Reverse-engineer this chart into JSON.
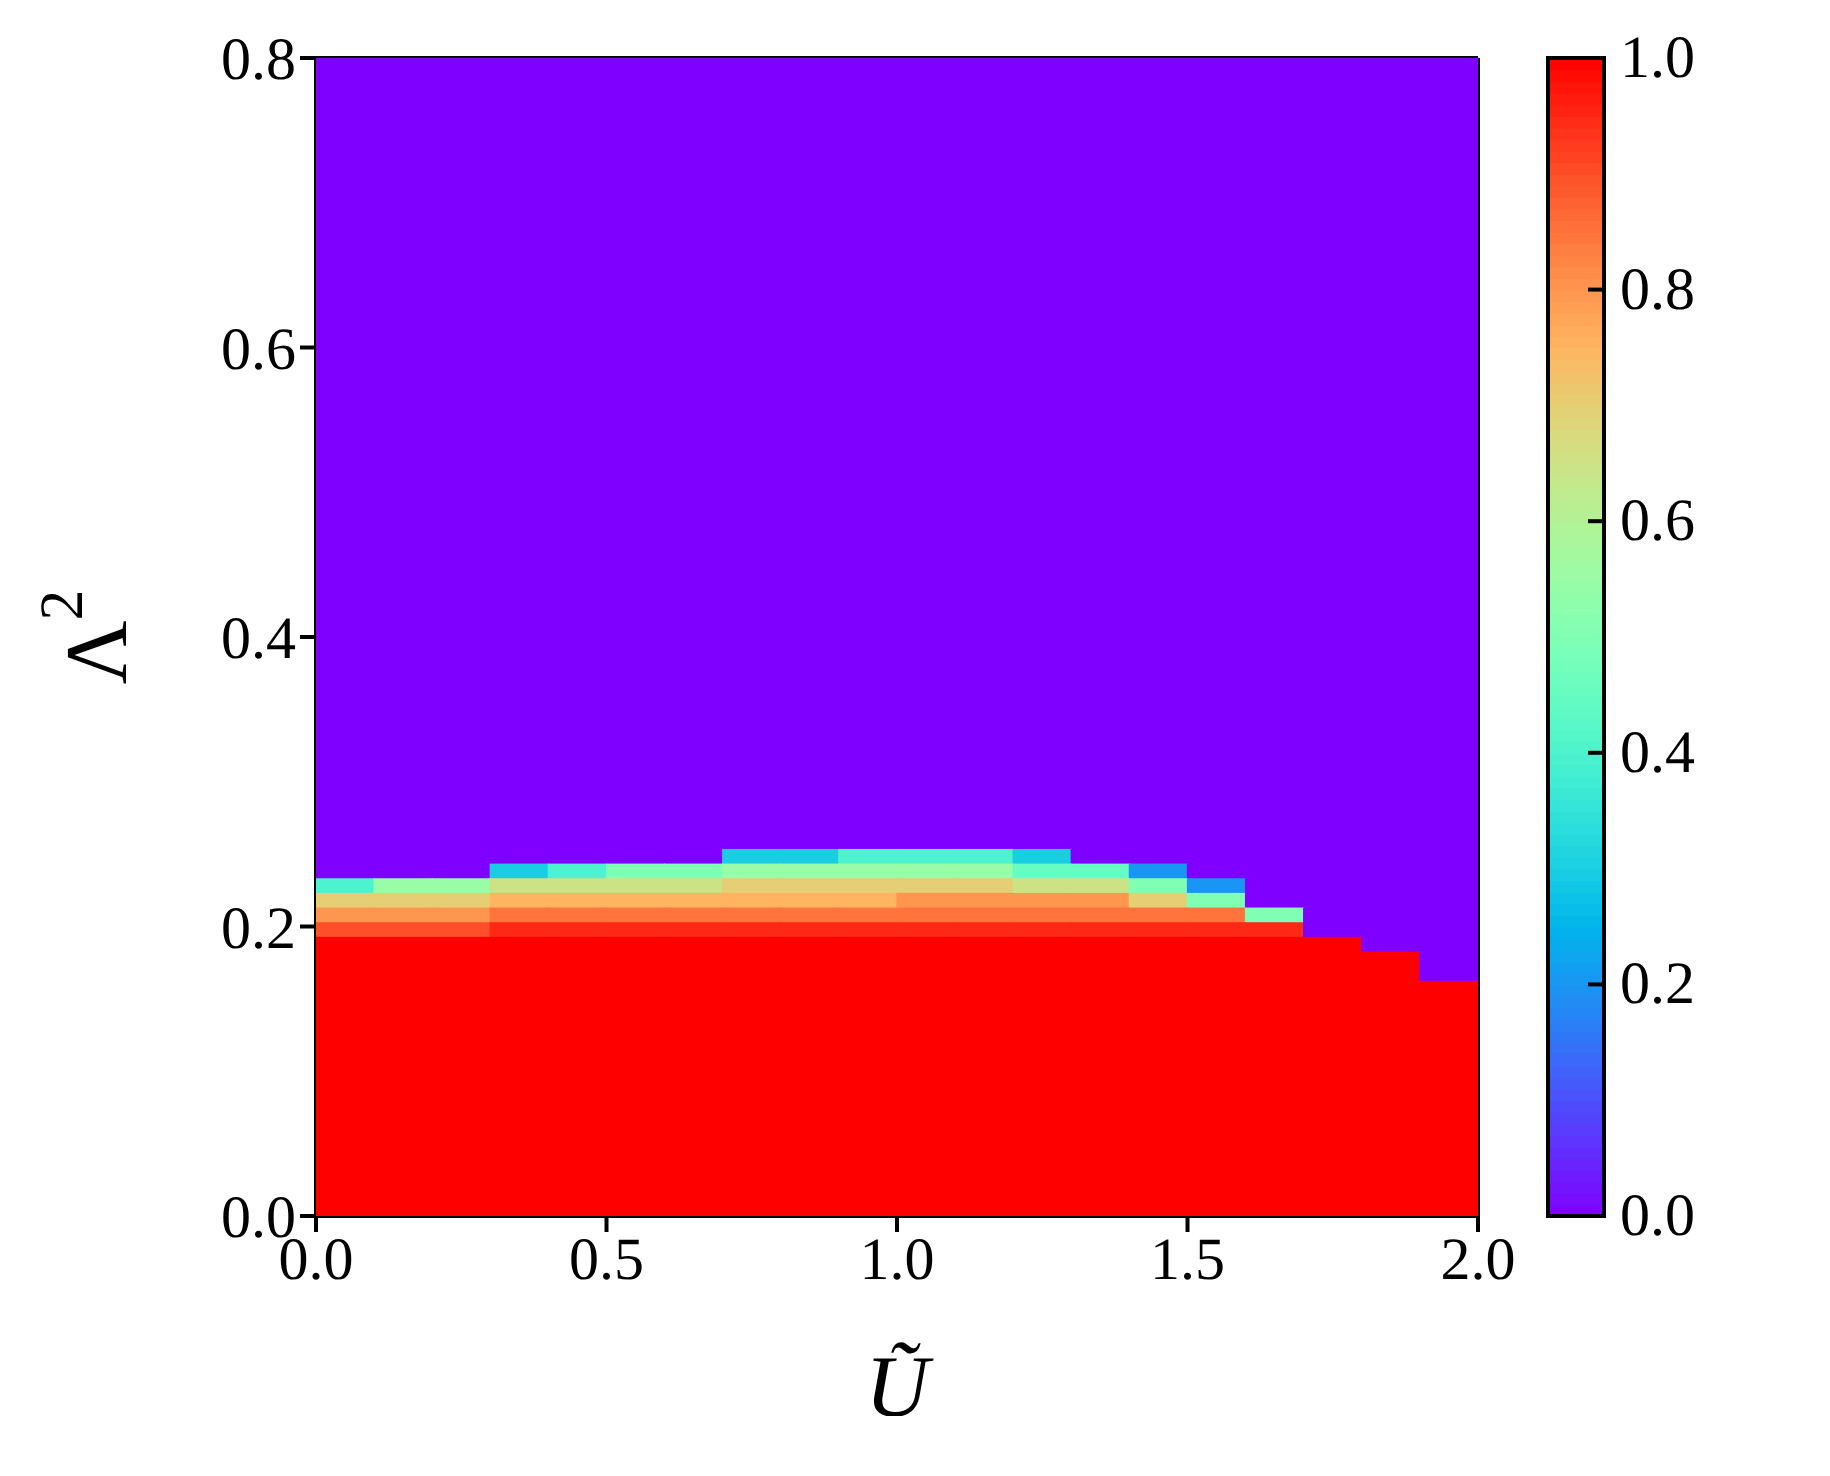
{
  "chart_data": {
    "type": "heatmap",
    "xlabel": "Ũ",
    "ylabel": "Λ$^{2}$",
    "xlim": [
      0,
      2
    ],
    "ylim": [
      0,
      0.8
    ],
    "xticks": [
      {
        "value": 0,
        "label": "0.0"
      },
      {
        "value": 0.5,
        "label": "0.5"
      },
      {
        "value": 1,
        "label": "1.0"
      },
      {
        "value": 1.5,
        "label": "1.5"
      },
      {
        "value": 2,
        "label": "2.0"
      }
    ],
    "yticks": [
      {
        "value": 0,
        "label": "0.0"
      },
      {
        "value": 0.2,
        "label": "0.2"
      },
      {
        "value": 0.4,
        "label": "0.4"
      },
      {
        "value": 0.6,
        "label": "0.6"
      },
      {
        "value": 0.8,
        "label": "0.8"
      }
    ],
    "clim": [
      0,
      1
    ],
    "cticks": [
      {
        "value": 0,
        "label": "0.0"
      },
      {
        "value": 0.2,
        "label": "0.2"
      },
      {
        "value": 0.4,
        "label": "0.4"
      },
      {
        "value": 0.6,
        "label": "0.6"
      },
      {
        "value": 0.8,
        "label": "0.8"
      },
      {
        "value": 1,
        "label": "1.0"
      }
    ],
    "cells": [
      [
        0,
        0,
        0,
        0,
        0,
        0,
        0,
        0,
        0,
        0,
        0,
        0,
        0,
        0,
        0,
        0,
        0,
        0,
        0,
        0
      ],
      [
        0,
        0,
        0,
        0,
        0,
        0,
        0,
        0,
        0,
        0,
        0,
        0,
        0,
        0,
        0,
        0,
        0,
        0,
        0,
        0
      ],
      [
        0,
        0,
        0,
        0,
        0,
        0,
        0,
        0,
        0,
        0,
        0,
        0,
        0,
        0,
        0,
        0,
        0,
        0,
        0,
        0
      ],
      [
        0,
        0,
        0,
        0,
        0,
        0,
        0,
        0,
        0,
        0,
        0,
        0,
        0,
        0,
        0,
        0,
        0,
        0,
        0,
        0
      ],
      [
        0,
        0,
        0,
        0,
        0,
        0,
        0,
        0,
        0,
        0,
        0,
        0,
        0,
        0,
        0,
        0,
        0,
        0,
        0,
        0
      ],
      [
        0,
        0,
        0,
        0,
        0,
        0,
        0,
        0,
        0,
        0,
        0,
        0,
        0,
        0,
        0,
        0,
        0,
        0,
        0,
        0
      ],
      [
        0,
        0,
        0,
        0,
        0,
        0,
        0,
        0,
        0,
        0,
        0,
        0,
        0,
        0,
        0,
        0,
        0,
        0,
        0,
        0
      ],
      [
        0,
        0,
        0,
        0,
        0,
        0,
        0,
        0,
        0,
        0,
        0,
        0,
        0,
        0,
        0,
        0,
        0,
        0,
        0,
        0
      ],
      [
        0,
        0,
        0,
        0,
        0,
        0,
        0,
        0,
        0,
        0,
        0,
        0,
        0,
        0,
        0,
        0,
        0,
        0,
        0,
        0
      ],
      [
        0,
        0,
        0,
        0,
        0,
        0,
        0,
        0,
        0,
        0,
        0,
        0,
        0,
        0,
        0,
        0,
        0,
        0,
        0,
        0
      ],
      [
        0,
        0,
        0,
        0,
        0,
        0,
        0,
        0,
        0,
        0,
        0,
        0,
        0,
        0,
        0,
        0,
        0,
        0,
        0,
        0
      ],
      [
        0,
        0,
        0,
        0,
        0,
        0,
        0,
        0,
        0,
        0,
        0,
        0,
        0,
        0,
        0,
        0,
        0,
        0,
        0,
        0
      ],
      [
        0,
        0,
        0,
        0,
        0,
        0,
        0,
        0,
        0,
        0,
        0,
        0,
        0,
        0,
        0,
        0,
        0,
        0,
        0,
        0
      ],
      [
        0,
        0,
        0,
        0,
        0,
        0,
        0,
        0,
        0,
        0,
        0,
        0,
        0,
        0,
        0,
        0,
        0,
        0,
        0,
        0
      ],
      [
        0,
        0,
        0,
        0,
        0,
        0,
        0,
        0,
        0,
        0,
        0,
        0,
        0,
        0,
        0,
        0,
        0,
        0,
        0,
        0
      ],
      [
        0,
        0,
        0,
        0,
        0,
        0,
        0,
        0,
        0,
        0,
        0,
        0,
        0,
        0,
        0,
        0,
        0,
        0,
        0,
        0
      ],
      [
        0,
        0,
        0,
        0,
        0,
        0,
        0,
        0,
        0,
        0,
        0,
        0,
        0,
        0,
        0,
        0,
        0,
        0,
        0,
        0
      ],
      [
        0,
        0,
        0,
        0,
        0,
        0,
        0,
        0,
        0,
        0,
        0,
        0,
        0,
        0,
        0,
        0,
        0,
        0,
        0,
        0
      ],
      [
        0,
        0,
        0,
        0,
        0,
        0,
        0,
        0,
        0,
        0,
        0,
        0,
        0,
        0,
        0,
        0,
        0,
        0,
        0,
        0
      ],
      [
        0,
        0,
        0,
        0,
        0,
        0,
        0,
        0,
        0,
        0,
        0,
        0,
        0,
        0,
        0,
        0,
        0,
        0,
        0,
        0
      ],
      [
        0,
        0,
        0,
        0,
        0,
        0,
        0,
        0,
        0,
        0,
        0,
        0,
        0,
        0,
        0,
        0,
        0,
        0,
        0,
        0
      ],
      [
        0,
        0,
        0,
        0,
        0,
        0,
        0,
        0,
        0,
        0,
        0,
        0,
        0,
        0,
        0,
        0,
        0,
        0,
        0,
        0
      ],
      [
        0,
        0,
        0,
        0,
        0,
        0,
        0,
        0,
        0,
        0,
        0,
        0,
        0,
        0,
        0,
        0,
        0,
        0,
        0,
        0
      ],
      [
        0,
        0,
        0,
        0,
        0,
        0,
        0,
        0,
        0,
        0,
        0,
        0,
        0,
        0,
        0,
        0,
        0,
        0,
        0,
        0
      ],
      [
        0,
        0,
        0,
        0,
        0,
        0,
        0,
        0,
        0,
        0,
        0,
        0,
        0,
        0,
        0,
        0,
        0,
        0,
        0,
        0
      ],
      [
        0,
        0,
        0,
        0,
        0,
        0,
        0,
        0,
        0,
        0,
        0,
        0,
        0,
        0,
        0,
        0,
        0,
        0,
        0,
        0
      ],
      [
        0,
        0,
        0,
        0,
        0,
        0,
        0,
        0,
        0,
        0,
        0,
        0,
        0,
        0,
        0,
        0,
        0,
        0,
        0,
        0
      ],
      [
        0,
        0,
        0,
        0,
        0,
        0,
        0,
        0,
        0,
        0,
        0,
        0,
        0,
        0,
        0,
        0,
        0,
        0,
        0,
        0
      ],
      [
        0,
        0,
        0,
        0,
        0,
        0,
        0,
        0,
        0,
        0,
        0,
        0,
        0,
        0,
        0,
        0,
        0,
        0,
        0,
        0
      ],
      [
        0,
        0,
        0,
        0,
        0,
        0,
        0,
        0,
        0,
        0,
        0,
        0,
        0,
        0,
        0,
        0,
        0,
        0,
        0,
        0
      ],
      [
        0,
        0,
        0,
        0,
        0,
        0,
        0,
        0,
        0,
        0,
        0,
        0,
        0,
        0,
        0,
        0,
        0,
        0,
        0,
        0
      ],
      [
        0,
        0,
        0,
        0,
        0,
        0,
        0,
        0,
        0,
        0,
        0,
        0,
        0,
        0,
        0,
        0,
        0,
        0,
        0,
        0
      ],
      [
        0,
        0,
        0,
        0,
        0,
        0,
        0,
        0,
        0,
        0,
        0,
        0,
        0,
        0,
        0,
        0,
        0,
        0,
        0,
        0
      ],
      [
        0,
        0,
        0,
        0,
        0,
        0,
        0,
        0,
        0,
        0,
        0,
        0,
        0,
        0,
        0,
        0,
        0,
        0,
        0,
        0
      ],
      [
        0,
        0,
        0,
        0,
        0,
        0,
        0,
        0,
        0,
        0,
        0,
        0,
        0,
        0,
        0,
        0,
        0,
        0,
        0,
        0
      ],
      [
        0,
        0,
        0,
        0,
        0,
        0,
        0,
        0,
        0,
        0,
        0,
        0,
        0,
        0,
        0,
        0,
        0,
        0,
        0,
        0
      ],
      [
        0,
        0,
        0,
        0,
        0,
        0,
        0,
        0,
        0,
        0,
        0,
        0,
        0,
        0,
        0,
        0,
        0,
        0,
        0,
        0
      ],
      [
        0,
        0,
        0,
        0,
        0,
        0,
        0,
        0,
        0,
        0,
        0,
        0,
        0,
        0,
        0,
        0,
        0,
        0,
        0,
        0
      ],
      [
        0,
        0,
        0,
        0,
        0,
        0,
        0,
        0,
        0,
        0,
        0,
        0,
        0,
        0,
        0,
        0,
        0,
        0,
        0,
        0
      ],
      [
        0,
        0,
        0,
        0,
        0,
        0,
        0,
        0,
        0,
        0,
        0,
        0,
        0,
        0,
        0,
        0,
        0,
        0,
        0,
        0
      ],
      [
        0,
        0,
        0,
        0,
        0,
        0,
        0,
        0,
        0,
        0,
        0,
        0,
        0,
        0,
        0,
        0,
        0,
        0,
        0,
        0
      ],
      [
        0,
        0,
        0,
        0,
        0,
        0,
        0,
        0,
        0,
        0,
        0,
        0,
        0,
        0,
        0,
        0,
        0,
        0,
        0,
        0
      ],
      [
        0,
        0,
        0,
        0,
        0,
        0,
        0,
        0,
        0,
        0,
        0,
        0,
        0,
        0,
        0,
        0,
        0,
        0,
        0,
        0
      ],
      [
        0,
        0,
        0,
        0,
        0,
        0,
        0,
        0,
        0,
        0,
        0,
        0,
        0,
        0,
        0,
        0,
        0,
        0,
        0,
        0
      ],
      [
        0,
        0,
        0,
        0,
        0,
        0,
        0,
        0,
        0,
        0,
        0,
        0,
        0,
        0,
        0,
        0,
        0,
        0,
        0,
        0
      ],
      [
        0,
        0,
        0,
        0,
        0,
        0,
        0,
        0,
        0,
        0,
        0,
        0,
        0,
        0,
        0,
        0,
        0,
        0,
        0,
        0
      ],
      [
        0,
        0,
        0,
        0,
        0,
        0,
        0,
        0,
        0,
        0,
        0,
        0,
        0,
        0,
        0,
        0,
        0,
        0,
        0,
        0
      ],
      [
        0,
        0,
        0,
        0,
        0,
        0,
        0,
        0,
        0,
        0,
        0,
        0,
        0,
        0,
        0,
        0,
        0,
        0,
        0,
        0
      ],
      [
        0,
        0,
        0,
        0,
        0,
        0,
        0,
        0,
        0,
        0,
        0,
        0,
        0,
        0,
        0,
        0,
        0,
        0,
        0,
        0
      ],
      [
        0,
        0,
        0,
        0,
        0,
        0,
        0,
        0,
        0,
        0,
        0,
        0,
        0,
        0,
        0,
        0,
        0,
        0,
        0,
        0
      ],
      [
        0,
        0,
        0,
        0,
        0,
        0,
        0,
        0,
        0,
        0,
        0,
        0,
        0,
        0,
        0,
        0,
        0,
        0,
        0,
        0
      ],
      [
        0,
        0,
        0,
        0,
        0,
        0,
        0,
        0,
        0,
        0,
        0,
        0,
        0,
        0,
        0,
        0,
        0,
        0,
        0,
        0
      ],
      [
        0,
        0,
        0,
        0,
        0,
        0,
        0,
        0,
        0,
        0,
        0,
        0,
        0,
        0,
        0,
        0,
        0,
        0,
        0,
        0
      ],
      [
        0,
        0,
        0,
        0,
        0,
        0,
        0,
        0,
        0,
        0,
        0,
        0,
        0,
        0,
        0,
        0,
        0,
        0,
        0,
        0
      ],
      [
        0,
        0,
        0,
        0,
        0,
        0,
        0,
        0.3,
        0.3,
        0.4,
        0.4,
        0.4,
        0.3,
        0,
        0,
        0,
        0,
        0,
        0,
        0
      ],
      [
        0,
        0,
        0,
        0.3,
        0.4,
        0.5,
        0.5,
        0.55,
        0.55,
        0.55,
        0.55,
        0.55,
        0.45,
        0.45,
        0.2,
        0,
        0,
        0,
        0,
        0
      ],
      [
        0.4,
        0.55,
        0.55,
        0.65,
        0.65,
        0.65,
        0.65,
        0.7,
        0.7,
        0.7,
        0.7,
        0.7,
        0.65,
        0.65,
        0.5,
        0.2,
        0,
        0,
        0,
        0
      ],
      [
        0.7,
        0.7,
        0.7,
        0.75,
        0.75,
        0.75,
        0.75,
        0.75,
        0.75,
        0.75,
        0.8,
        0.8,
        0.8,
        0.8,
        0.7,
        0.5,
        0,
        0,
        0,
        0
      ],
      [
        0.8,
        0.8,
        0.8,
        0.85,
        0.85,
        0.85,
        0.85,
        0.85,
        0.85,
        0.85,
        0.85,
        0.85,
        0.85,
        0.85,
        0.85,
        0.85,
        0.5,
        0,
        0,
        0
      ],
      [
        0.9,
        0.9,
        0.9,
        0.95,
        0.95,
        0.95,
        0.95,
        0.95,
        0.95,
        0.95,
        0.95,
        0.95,
        0.95,
        0.95,
        0.95,
        0.95,
        0.95,
        0,
        0,
        0
      ],
      [
        1,
        1,
        1,
        1,
        1,
        1,
        1,
        1,
        1,
        1,
        1,
        1,
        1,
        1,
        1,
        1,
        1,
        1,
        0,
        0
      ],
      [
        1,
        1,
        1,
        1,
        1,
        1,
        1,
        1,
        1,
        1,
        1,
        1,
        1,
        1,
        1,
        1,
        1,
        1,
        1,
        0
      ],
      [
        1,
        1,
        1,
        1,
        1,
        1,
        1,
        1,
        1,
        1,
        1,
        1,
        1,
        1,
        1,
        1,
        1,
        1,
        1,
        0
      ],
      [
        1,
        1,
        1,
        1,
        1,
        1,
        1,
        1,
        1,
        1,
        1,
        1,
        1,
        1,
        1,
        1,
        1,
        1,
        1,
        1
      ],
      [
        1,
        1,
        1,
        1,
        1,
        1,
        1,
        1,
        1,
        1,
        1,
        1,
        1,
        1,
        1,
        1,
        1,
        1,
        1,
        1
      ],
      [
        1,
        1,
        1,
        1,
        1,
        1,
        1,
        1,
        1,
        1,
        1,
        1,
        1,
        1,
        1,
        1,
        1,
        1,
        1,
        1
      ],
      [
        1,
        1,
        1,
        1,
        1,
        1,
        1,
        1,
        1,
        1,
        1,
        1,
        1,
        1,
        1,
        1,
        1,
        1,
        1,
        1
      ],
      [
        1,
        1,
        1,
        1,
        1,
        1,
        1,
        1,
        1,
        1,
        1,
        1,
        1,
        1,
        1,
        1,
        1,
        1,
        1,
        1
      ],
      [
        1,
        1,
        1,
        1,
        1,
        1,
        1,
        1,
        1,
        1,
        1,
        1,
        1,
        1,
        1,
        1,
        1,
        1,
        1,
        1
      ],
      [
        1,
        1,
        1,
        1,
        1,
        1,
        1,
        1,
        1,
        1,
        1,
        1,
        1,
        1,
        1,
        1,
        1,
        1,
        1,
        1
      ],
      [
        1,
        1,
        1,
        1,
        1,
        1,
        1,
        1,
        1,
        1,
        1,
        1,
        1,
        1,
        1,
        1,
        1,
        1,
        1,
        1
      ],
      [
        1,
        1,
        1,
        1,
        1,
        1,
        1,
        1,
        1,
        1,
        1,
        1,
        1,
        1,
        1,
        1,
        1,
        1,
        1,
        1
      ],
      [
        1,
        1,
        1,
        1,
        1,
        1,
        1,
        1,
        1,
        1,
        1,
        1,
        1,
        1,
        1,
        1,
        1,
        1,
        1,
        1
      ],
      [
        1,
        1,
        1,
        1,
        1,
        1,
        1,
        1,
        1,
        1,
        1,
        1,
        1,
        1,
        1,
        1,
        1,
        1,
        1,
        1
      ],
      [
        1,
        1,
        1,
        1,
        1,
        1,
        1,
        1,
        1,
        1,
        1,
        1,
        1,
        1,
        1,
        1,
        1,
        1,
        1,
        1
      ],
      [
        1,
        1,
        1,
        1,
        1,
        1,
        1,
        1,
        1,
        1,
        1,
        1,
        1,
        1,
        1,
        1,
        1,
        1,
        1,
        1
      ],
      [
        1,
        1,
        1,
        1,
        1,
        1,
        1,
        1,
        1,
        1,
        1,
        1,
        1,
        1,
        1,
        1,
        1,
        1,
        1,
        1
      ],
      [
        1,
        1,
        1,
        1,
        1,
        1,
        1,
        1,
        1,
        1,
        1,
        1,
        1,
        1,
        1,
        1,
        1,
        1,
        1,
        1
      ],
      [
        1,
        1,
        1,
        1,
        1,
        1,
        1,
        1,
        1,
        1,
        1,
        1,
        1,
        1,
        1,
        1,
        1,
        1,
        1,
        1
      ]
    ]
  }
}
